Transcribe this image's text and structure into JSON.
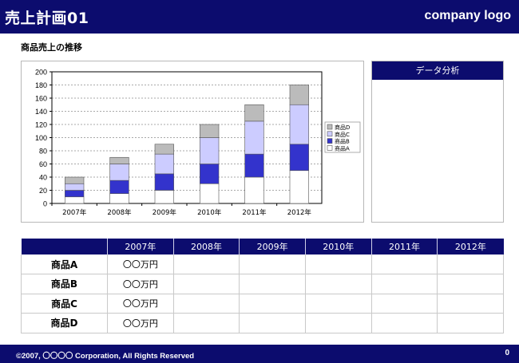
{
  "header": {
    "title": "売上計画01",
    "logo": "company logo"
  },
  "section_title": "商品売上の推移",
  "analysis": {
    "title": "データ分析"
  },
  "chart_data": {
    "type": "bar",
    "stacked": true,
    "categories": [
      "2007年",
      "2008年",
      "2009年",
      "2010年",
      "2011年",
      "2012年"
    ],
    "series": [
      {
        "name": "商品A",
        "values": [
          10,
          15,
          20,
          30,
          40,
          50
        ],
        "color": "#ffffff"
      },
      {
        "name": "商品B",
        "values": [
          10,
          20,
          25,
          30,
          35,
          40
        ],
        "color": "#3333cc"
      },
      {
        "name": "商品C",
        "values": [
          10,
          25,
          30,
          40,
          50,
          60
        ],
        "color": "#ccccff"
      },
      {
        "name": "商品D",
        "values": [
          10,
          10,
          15,
          20,
          25,
          30
        ],
        "color": "#bbbbbb"
      }
    ],
    "ylim": [
      0,
      200
    ],
    "yticks": [
      0,
      20,
      40,
      60,
      80,
      100,
      120,
      140,
      160,
      180,
      200
    ],
    "legend_order": [
      "商品D",
      "商品C",
      "商品B",
      "商品A"
    ],
    "legend_position": "right",
    "grid": true
  },
  "table": {
    "years": [
      "2007年",
      "2008年",
      "2009年",
      "2010年",
      "2011年",
      "2012年"
    ],
    "rows": [
      {
        "label": "商品A",
        "values": [
          "〇〇万円",
          "",
          "",
          "",
          "",
          ""
        ]
      },
      {
        "label": "商品B",
        "values": [
          "〇〇万円",
          "",
          "",
          "",
          "",
          ""
        ]
      },
      {
        "label": "商品C",
        "values": [
          "〇〇万円",
          "",
          "",
          "",
          "",
          ""
        ]
      },
      {
        "label": "商品D",
        "values": [
          "〇〇万円",
          "",
          "",
          "",
          "",
          ""
        ]
      }
    ]
  },
  "footer": {
    "copyright": "©2007, 〇〇〇〇 Corporation, All Rights Reserved",
    "page": "0"
  },
  "colors": {
    "navy": "#0c0c6e",
    "bar_b": "#3333cc",
    "bar_c": "#ccccff",
    "bar_d": "#bbbbbb"
  }
}
